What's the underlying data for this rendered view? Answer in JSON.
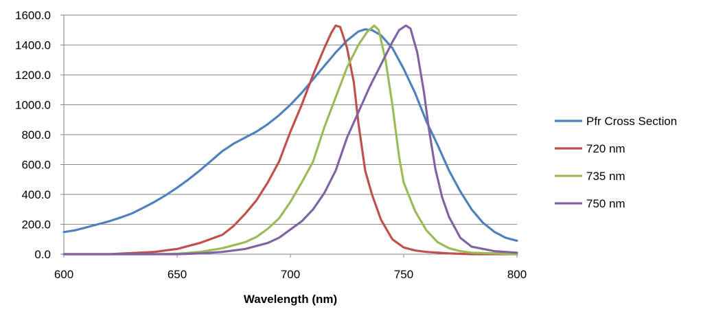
{
  "chart_data": {
    "type": "line",
    "title": "",
    "xlabel": "Wavelength (nm)",
    "ylabel": "",
    "xlim": [
      600,
      800
    ],
    "ylim": [
      0,
      1600
    ],
    "xticks": [
      600,
      650,
      700,
      750,
      800
    ],
    "yticks": [
      0,
      200,
      400,
      600,
      800,
      1000,
      1200,
      1400,
      1600
    ],
    "xtick_labels": [
      "600",
      "650",
      "700",
      "750",
      "800"
    ],
    "ytick_labels": [
      "0.0",
      "200.0",
      "400.0",
      "600.0",
      "800.0",
      "1000.0",
      "1200.0",
      "1400.0",
      "1600.0"
    ],
    "grid": "horizontal",
    "legend_position": "right",
    "series": [
      {
        "name": "Pfr Cross Section",
        "color": "#4f81bd",
        "points": [
          [
            600,
            148
          ],
          [
            605,
            160
          ],
          [
            610,
            180
          ],
          [
            615,
            200
          ],
          [
            620,
            220
          ],
          [
            625,
            245
          ],
          [
            630,
            272
          ],
          [
            635,
            310
          ],
          [
            640,
            350
          ],
          [
            645,
            395
          ],
          [
            650,
            445
          ],
          [
            655,
            500
          ],
          [
            660,
            560
          ],
          [
            665,
            625
          ],
          [
            670,
            690
          ],
          [
            675,
            740
          ],
          [
            680,
            780
          ],
          [
            685,
            820
          ],
          [
            690,
            870
          ],
          [
            695,
            930
          ],
          [
            700,
            1000
          ],
          [
            705,
            1080
          ],
          [
            710,
            1170
          ],
          [
            715,
            1260
          ],
          [
            720,
            1350
          ],
          [
            725,
            1430
          ],
          [
            730,
            1490
          ],
          [
            733,
            1505
          ],
          [
            736,
            1500
          ],
          [
            740,
            1465
          ],
          [
            745,
            1380
          ],
          [
            750,
            1240
          ],
          [
            755,
            1080
          ],
          [
            760,
            890
          ],
          [
            765,
            730
          ],
          [
            770,
            560
          ],
          [
            775,
            420
          ],
          [
            780,
            300
          ],
          [
            785,
            210
          ],
          [
            790,
            150
          ],
          [
            795,
            110
          ],
          [
            800,
            90
          ]
        ]
      },
      {
        "name": "720 nm",
        "color": "#c0504d",
        "points": [
          [
            600,
            0
          ],
          [
            620,
            0
          ],
          [
            630,
            8
          ],
          [
            640,
            15
          ],
          [
            650,
            35
          ],
          [
            660,
            75
          ],
          [
            670,
            130
          ],
          [
            675,
            190
          ],
          [
            680,
            270
          ],
          [
            685,
            360
          ],
          [
            690,
            480
          ],
          [
            695,
            620
          ],
          [
            700,
            820
          ],
          [
            705,
            1000
          ],
          [
            710,
            1200
          ],
          [
            715,
            1380
          ],
          [
            718,
            1480
          ],
          [
            720,
            1530
          ],
          [
            722,
            1520
          ],
          [
            725,
            1380
          ],
          [
            728,
            1150
          ],
          [
            730,
            880
          ],
          [
            733,
            560
          ],
          [
            736,
            400
          ],
          [
            740,
            230
          ],
          [
            745,
            100
          ],
          [
            750,
            45
          ],
          [
            755,
            25
          ],
          [
            760,
            15
          ],
          [
            770,
            5
          ],
          [
            780,
            0
          ],
          [
            800,
            0
          ]
        ]
      },
      {
        "name": "735 nm",
        "color": "#9bbb59",
        "points": [
          [
            600,
            0
          ],
          [
            640,
            0
          ],
          [
            650,
            3
          ],
          [
            660,
            15
          ],
          [
            670,
            40
          ],
          [
            680,
            80
          ],
          [
            685,
            115
          ],
          [
            690,
            170
          ],
          [
            695,
            240
          ],
          [
            700,
            350
          ],
          [
            705,
            480
          ],
          [
            710,
            620
          ],
          [
            715,
            850
          ],
          [
            720,
            1050
          ],
          [
            725,
            1250
          ],
          [
            730,
            1400
          ],
          [
            734,
            1490
          ],
          [
            737,
            1530
          ],
          [
            739,
            1500
          ],
          [
            742,
            1300
          ],
          [
            745,
            1000
          ],
          [
            748,
            650
          ],
          [
            750,
            480
          ],
          [
            755,
            290
          ],
          [
            760,
            160
          ],
          [
            765,
            80
          ],
          [
            770,
            40
          ],
          [
            775,
            20
          ],
          [
            780,
            10
          ],
          [
            790,
            5
          ],
          [
            800,
            0
          ]
        ]
      },
      {
        "name": "750 nm",
        "color": "#8064a2",
        "points": [
          [
            600,
            0
          ],
          [
            650,
            0
          ],
          [
            660,
            5
          ],
          [
            670,
            15
          ],
          [
            680,
            35
          ],
          [
            690,
            75
          ],
          [
            695,
            110
          ],
          [
            700,
            165
          ],
          [
            705,
            220
          ],
          [
            710,
            300
          ],
          [
            715,
            410
          ],
          [
            720,
            560
          ],
          [
            725,
            780
          ],
          [
            730,
            950
          ],
          [
            735,
            1120
          ],
          [
            740,
            1270
          ],
          [
            745,
            1420
          ],
          [
            748,
            1500
          ],
          [
            751,
            1530
          ],
          [
            753,
            1510
          ],
          [
            756,
            1350
          ],
          [
            759,
            1080
          ],
          [
            761,
            850
          ],
          [
            764,
            570
          ],
          [
            767,
            380
          ],
          [
            770,
            250
          ],
          [
            775,
            110
          ],
          [
            780,
            50
          ],
          [
            790,
            20
          ],
          [
            800,
            10
          ]
        ]
      }
    ]
  }
}
